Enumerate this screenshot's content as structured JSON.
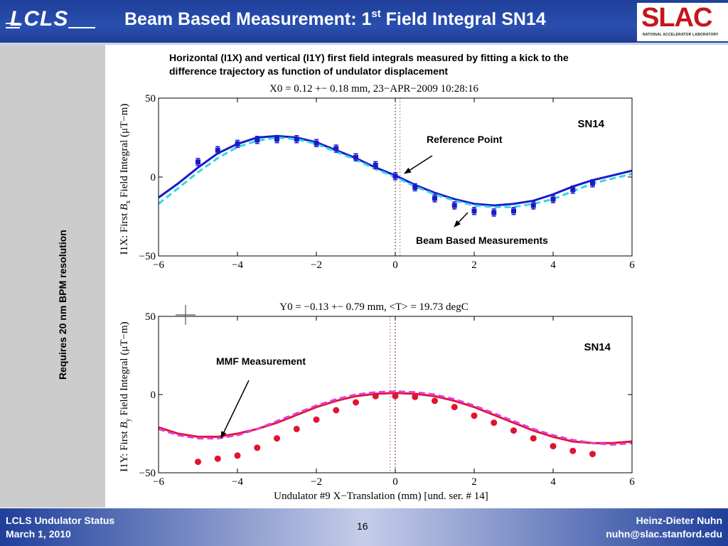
{
  "header": {
    "logo_text": "LCLS",
    "title_main": "Beam Based Measurement: 1",
    "title_sup": "st",
    "title_tail": " Field Integral SN14",
    "slac_logo_text": "SLAC",
    "slac_logo_sub": "NATIONAL ACCELERATOR LABORATORY",
    "colors": {
      "band": "#1f3f9a",
      "slac_red": "#c4161c"
    }
  },
  "side_note": "Requires 20 nm BPM resolution",
  "caption": "Horizontal (I1X) and vertical (I1Y) first field integrals measured by fitting a kick to the difference trajectory as function of undulator displacement",
  "chart_data": [
    {
      "type": "line",
      "title": "X0 =  0.12 +− 0.18 mm, 23−APR−2009 10:28:16",
      "ylabel_prefix": "I1X:  First ",
      "ylabel_var": "B",
      "ylabel_sub": "x",
      "ylabel_suffix": " Field Integral (μT−m)",
      "xlim": [
        -6,
        6
      ],
      "ylim": [
        -50,
        50
      ],
      "xticks": [
        "−6",
        "−4",
        "−2",
        "0",
        "2",
        "4",
        "6"
      ],
      "yticks": [
        "50",
        "0",
        "−50"
      ],
      "grid": false,
      "vertical_lines": [
        {
          "x": 0.0,
          "color": "#000000",
          "style": "dotted"
        },
        {
          "x": 0.12,
          "color": "#cc3333",
          "style": "dotted"
        }
      ],
      "series": [
        {
          "style": "line",
          "color": "#1a1acc",
          "dash": "solid",
          "x": [
            -6,
            -5.5,
            -5,
            -4.5,
            -4,
            -3.5,
            -3,
            -2.5,
            -2,
            -1.5,
            -1,
            -0.5,
            0,
            0.5,
            1,
            1.5,
            2,
            2.5,
            3,
            3.5,
            4,
            4.5,
            5,
            5.5,
            6
          ],
          "y": [
            -13,
            -4,
            6,
            15,
            21,
            25,
            26,
            25,
            22,
            17,
            12,
            6,
            1,
            -5,
            -10,
            -14,
            -17,
            -18,
            -17,
            -15,
            -11,
            -6,
            -2,
            1,
            4
          ]
        },
        {
          "style": "line",
          "color": "#33d6e6",
          "dash": "dashed",
          "x": [
            -6,
            -5.5,
            -5,
            -4.5,
            -4,
            -3.5,
            -3,
            -2.5,
            -2,
            -1.5,
            -1,
            -0.5,
            0,
            0.5,
            1,
            1.5,
            2,
            2.5,
            3,
            3.5,
            4,
            4.5,
            5,
            5.5,
            6
          ],
          "y": [
            -17,
            -7,
            3,
            12,
            19,
            23,
            25,
            24,
            21,
            16,
            11,
            5,
            0,
            -6,
            -11,
            -15,
            -18,
            -19,
            -19,
            -17,
            -14,
            -9,
            -4,
            -1,
            2
          ]
        },
        {
          "style": "markers",
          "marker": "square",
          "color": "#1a1acc",
          "errorbars": true,
          "x": [
            -5,
            -4.5,
            -4,
            -3.5,
            -3,
            -2.5,
            -2,
            -1.5,
            -1,
            -0.5,
            0,
            0.5,
            1,
            1.5,
            2,
            2.5,
            3,
            3.5,
            4,
            4.5,
            5
          ],
          "y": [
            9.5,
            17,
            21,
            23.5,
            24,
            24,
            21.5,
            18,
            12.5,
            7.5,
            0.5,
            -6.5,
            -13.5,
            -18,
            -21.5,
            -22.5,
            -21.5,
            -18,
            -14,
            -8,
            -4
          ]
        }
      ],
      "annotations": [
        {
          "text": "SN14"
        },
        {
          "text": "Reference Point"
        },
        {
          "text": "Beam Based Measurements"
        }
      ]
    },
    {
      "type": "line",
      "title": "Y0 = −0.13 +− 0.79 mm, <T> = 19.73 degC",
      "ylabel_prefix": "I1Y:  First ",
      "ylabel_var": "B",
      "ylabel_sub": "y",
      "ylabel_suffix": " Field Integral (μT−m)",
      "xlabel": "Undulator #9 X−Translation (mm) [und. ser. # 14]",
      "xlim": [
        -6,
        6
      ],
      "ylim": [
        -50,
        50
      ],
      "xticks": [
        "−6",
        "−4",
        "−2",
        "0",
        "2",
        "4",
        "6"
      ],
      "yticks": [
        "50",
        "0",
        "−50"
      ],
      "grid": false,
      "vertical_lines": [
        {
          "x": -0.13,
          "color": "#cc3333",
          "style": "dotted"
        },
        {
          "x": 0.0,
          "color": "#000000",
          "style": "dotted"
        }
      ],
      "series": [
        {
          "style": "line",
          "color": "#e0142e",
          "dash": "solid",
          "x": [
            -6,
            -5.5,
            -5,
            -4.5,
            -4,
            -3.5,
            -3,
            -2.5,
            -2,
            -1.5,
            -1,
            -0.5,
            0,
            0.5,
            1,
            1.5,
            2,
            2.5,
            3,
            3.5,
            4,
            4.5,
            5,
            5.5,
            6
          ],
          "y": [
            -21,
            -25,
            -27,
            -27,
            -25,
            -22,
            -18,
            -13,
            -8,
            -4,
            -1,
            0.5,
            1,
            0.5,
            -1,
            -4,
            -8,
            -13,
            -18,
            -23,
            -27,
            -30,
            -31,
            -31,
            -30
          ]
        },
        {
          "style": "line",
          "color": "#e23ce6",
          "dash": "dashed",
          "x": [
            -6,
            -5.5,
            -5,
            -4.5,
            -4,
            -3.5,
            -3,
            -2.5,
            -2,
            -1.5,
            -1,
            -0.5,
            0,
            0.5,
            1,
            1.5,
            2,
            2.5,
            3,
            3.5,
            4,
            4.5,
            5,
            5.5,
            6
          ],
          "y": [
            -22,
            -26,
            -28,
            -28,
            -26,
            -22,
            -17,
            -12,
            -7,
            -3,
            0,
            1.5,
            2,
            1.5,
            0,
            -3,
            -7,
            -12,
            -17,
            -22,
            -26,
            -29,
            -31,
            -32,
            -31
          ]
        },
        {
          "style": "markers",
          "marker": "circle",
          "color": "#e0142e",
          "x": [
            -5,
            -4.5,
            -4,
            -3.5,
            -3,
            -2.5,
            -2,
            -1.5,
            -1,
            -0.5,
            0,
            0.5,
            1,
            1.5,
            2,
            2.5,
            3,
            3.5,
            4,
            4.5,
            5
          ],
          "y": [
            -43,
            -41,
            -39,
            -34,
            -28,
            -22,
            -16,
            -10,
            -5,
            -1,
            -1,
            -1.5,
            -4,
            -8,
            -13.5,
            -18,
            -23,
            -28,
            -33,
            -36,
            -38
          ]
        }
      ],
      "annotations": [
        {
          "text": "SN14"
        },
        {
          "text": "MMF Measurement"
        }
      ]
    }
  ],
  "footer": {
    "left_line1": "LCLS Undulator Status",
    "left_line2": "March 1, 2010",
    "page": "16",
    "right_line1": "Heinz-Dieter Nuhn",
    "right_line2": "nuhn@slac.stanford.edu"
  }
}
